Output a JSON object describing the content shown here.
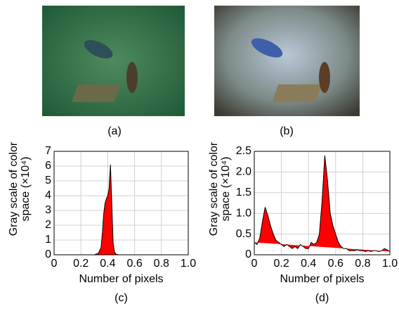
{
  "images": [
    {
      "caption": "(a)"
    },
    {
      "caption": "(b)"
    }
  ],
  "chart_data": [
    {
      "type": "area",
      "caption": "(c)",
      "xlabel": "Number of pixels",
      "ylabel": [
        "Gray scale of color",
        "space (×10⁴)"
      ],
      "x": [
        0.3,
        0.33,
        0.35,
        0.36,
        0.37,
        0.38,
        0.39,
        0.4,
        0.41,
        0.42,
        0.43,
        0.44,
        0.45,
        0.46,
        0.48
      ],
      "series": [
        {
          "color": "#ff0000",
          "values": [
            0,
            0.1,
            0.5,
            1.5,
            2.8,
            3.5,
            3.8,
            4.0,
            4.5,
            6.1,
            3.5,
            0.8,
            0.2,
            0.05,
            0
          ]
        }
      ],
      "xlim": [
        0,
        1
      ],
      "ylim": [
        0,
        7
      ],
      "xticks": [
        0,
        0.2,
        0.4,
        0.6,
        0.8,
        {
          "value": 1,
          "label": "1.0"
        }
      ],
      "yticks": [
        0,
        1,
        2,
        3,
        4,
        5,
        6,
        7
      ],
      "grid": true
    },
    {
      "type": "area",
      "caption": "(d)",
      "xlabel": "Number of pixels",
      "ylabel": [
        "Gray scale of color",
        "space (×10⁴)"
      ],
      "x": [
        0,
        0.02,
        0.04,
        0.06,
        0.08,
        0.1,
        0.12,
        0.14,
        0.16,
        0.18,
        0.2,
        0.22,
        0.24,
        0.26,
        0.28,
        0.3,
        0.32,
        0.34,
        0.36,
        0.38,
        0.4,
        0.42,
        0.44,
        0.46,
        0.48,
        0.5,
        0.52,
        0.54,
        0.56,
        0.58,
        0.6,
        0.62,
        0.64,
        0.66,
        0.68,
        0.7,
        0.72,
        0.74,
        0.76,
        0.78,
        0.8,
        0.82,
        0.84,
        0.86,
        0.88,
        0.9,
        0.92,
        0.94,
        0.96,
        0.98,
        1.0
      ],
      "series": [
        {
          "color": "#ff0000",
          "values": [
            0.3,
            0.25,
            0.4,
            0.8,
            1.15,
            0.95,
            0.7,
            0.5,
            0.35,
            0.3,
            0.25,
            0.2,
            0.25,
            0.2,
            0.15,
            0.2,
            0.15,
            0.25,
            0.2,
            0.15,
            0.15,
            0.3,
            0.25,
            0.3,
            0.5,
            1.3,
            2.4,
            1.8,
            1.0,
            0.7,
            0.5,
            0.3,
            0.2,
            0.15,
            0.15,
            0.1,
            0.1,
            0.1,
            0.12,
            0.1,
            0.1,
            0.08,
            0.1,
            0.08,
            0.1,
            0.1,
            0.08,
            0.1,
            0.15,
            0.12,
            0.08
          ]
        }
      ],
      "xlim": [
        0,
        1
      ],
      "ylim": [
        0,
        2.5
      ],
      "xticks": [
        0,
        0.2,
        0.4,
        0.6,
        0.8,
        {
          "value": 1,
          "label": "1.0"
        }
      ],
      "yticks": [
        0,
        0.5,
        {
          "value": 1,
          "label": "1.0"
        },
        1.5,
        {
          "value": 2,
          "label": "2.0"
        },
        2.5
      ],
      "grid": true
    }
  ]
}
